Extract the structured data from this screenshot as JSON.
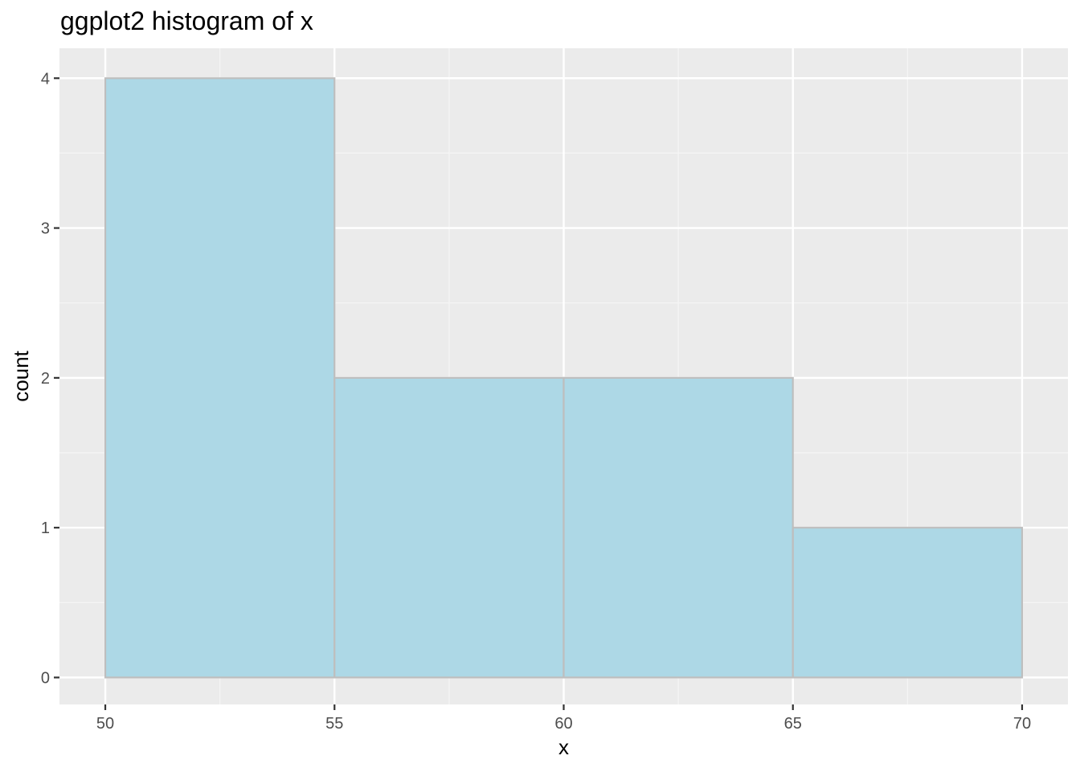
{
  "chart_data": {
    "type": "bar",
    "subtype": "histogram",
    "title": "ggplot2 histogram of x",
    "xlabel": "x",
    "ylabel": "count",
    "bins": [
      {
        "start": 50,
        "end": 55,
        "count": 4
      },
      {
        "start": 55,
        "end": 60,
        "count": 2
      },
      {
        "start": 60,
        "end": 65,
        "count": 2
      },
      {
        "start": 65,
        "end": 70,
        "count": 1
      }
    ],
    "xlim": [
      49,
      71
    ],
    "ylim": [
      -0.18,
      4.2
    ],
    "x_ticks": [
      50,
      55,
      60,
      65,
      70
    ],
    "y_ticks": [
      0,
      1,
      2,
      3,
      4
    ],
    "x_minor": [
      52.5,
      57.5,
      62.5,
      67.5
    ],
    "y_minor": [
      0.5,
      1.5,
      2.5,
      3.5
    ],
    "grid": true,
    "colors": {
      "bar_fill": "#add8e6",
      "bar_outline": "#bebebe",
      "panel_background": "#ebebeb",
      "grid_major": "#ffffff",
      "grid_minor": "#f5f5f5",
      "tick_text": "#4d4d4d",
      "tick_mark": "#333333"
    }
  }
}
